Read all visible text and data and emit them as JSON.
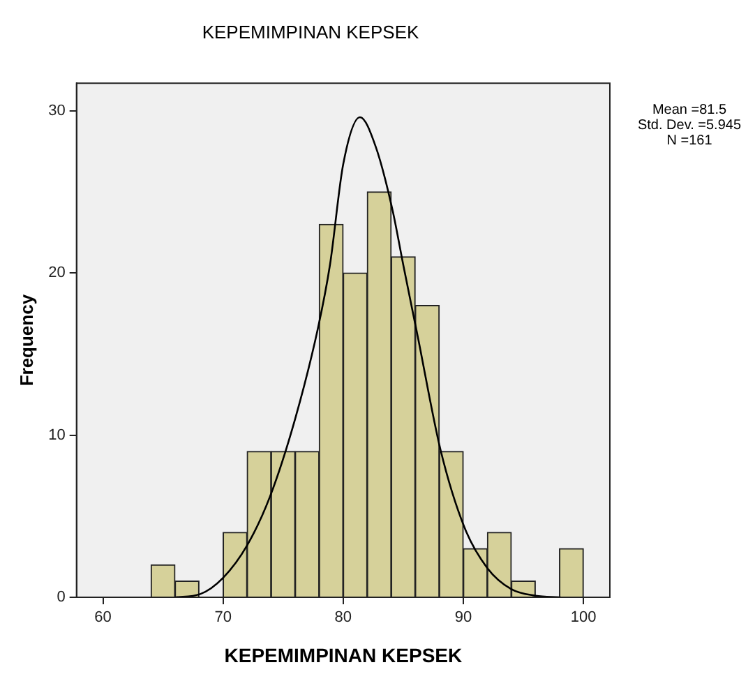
{
  "chart_data": {
    "type": "histogram",
    "title": "KEPEMIMPINAN KEPSEK",
    "xlabel": "KEPEMIMPINAN KEPSEK",
    "ylabel": "Frequency",
    "bins": [
      64,
      66,
      68,
      70,
      72,
      74,
      76,
      78,
      80,
      82,
      84,
      86,
      88,
      90,
      92,
      94,
      96,
      98,
      100
    ],
    "values": [
      2,
      1,
      0,
      4,
      9,
      9,
      9,
      23,
      20,
      25,
      21,
      18,
      9,
      3,
      4,
      1,
      0,
      3
    ],
    "color": "#d6d19a",
    "series": [
      {
        "type": "line",
        "color": "#000000",
        "x": [
          66,
          68.1,
          70,
          72,
          73.9,
          76,
          77.9,
          78.9,
          80,
          81.4,
          82.7,
          84.1,
          85,
          86.2,
          88.1,
          90.1,
          92,
          94,
          96,
          98.1
        ],
        "values": [
          0,
          0.2,
          1.2,
          3.2,
          6.2,
          11,
          16.6,
          20.5,
          26.7,
          29.6,
          27.8,
          23.9,
          20.5,
          16.1,
          9.1,
          4.3,
          1.8,
          0.5,
          0.1,
          0
        ]
      }
    ],
    "xlim": [
      57.8,
      102.2
    ],
    "xticks": [
      60,
      70,
      80,
      90,
      100
    ],
    "ylim": [
      0,
      31.7
    ],
    "yticks": [
      0,
      10,
      20,
      30
    ],
    "grid": false,
    "marker": "none",
    "line_style": "solid",
    "annotations": [
      "Mean =81.5",
      "Std. Dev. =5.945",
      "N =161"
    ]
  }
}
